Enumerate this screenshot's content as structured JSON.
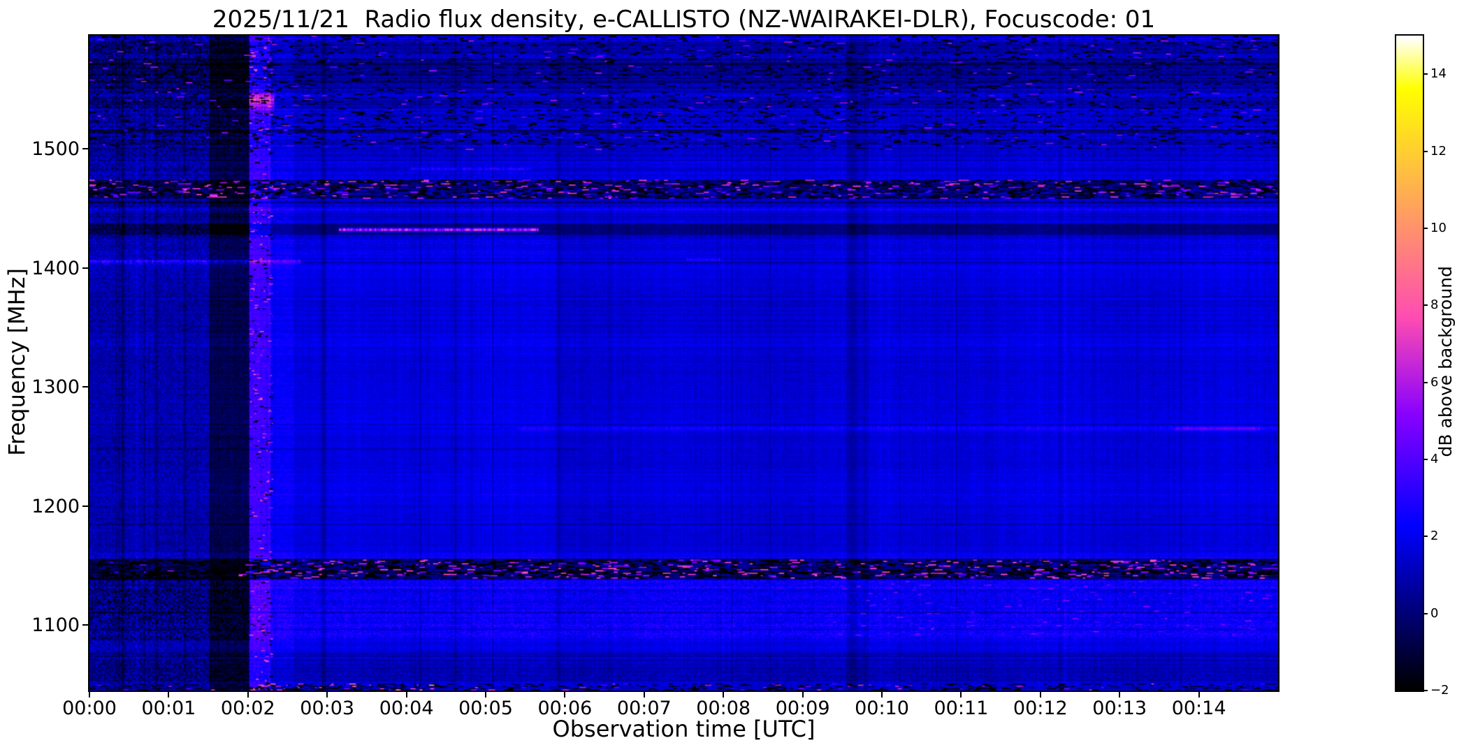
{
  "figure": {
    "title": "2025/11/21  Radio flux density, e-CALLISTO (NZ-WAIRAKEI-DLR), Focuscode: 01",
    "xlabel": "Observation time [UTC]",
    "ylabel": "Frequency [MHz]",
    "colorbar_label": "dB above background",
    "background": "#ffffff"
  },
  "chart_data": {
    "type": "heatmap",
    "title": "2025/11/21  Radio flux density, e-CALLISTO (NZ-WAIRAKEI-DLR), Focuscode: 01",
    "xlabel": "Observation time [UTC]",
    "ylabel": "Frequency [MHz]",
    "colorbar_label": "dB above background",
    "colormap": "gnuplot2",
    "x_range_minutes": [
      0,
      15
    ],
    "y_range_mhz": [
      1045,
      1595
    ],
    "value_range_db": [
      -2,
      15
    ],
    "x_ticks": [
      {
        "t": 0,
        "label": "00:00"
      },
      {
        "t": 1,
        "label": "00:01"
      },
      {
        "t": 2,
        "label": "00:02"
      },
      {
        "t": 3,
        "label": "00:03"
      },
      {
        "t": 4,
        "label": "00:04"
      },
      {
        "t": 5,
        "label": "00:05"
      },
      {
        "t": 6,
        "label": "00:06"
      },
      {
        "t": 7,
        "label": "00:07"
      },
      {
        "t": 8,
        "label": "00:08"
      },
      {
        "t": 9,
        "label": "00:09"
      },
      {
        "t": 10,
        "label": "00:10"
      },
      {
        "t": 11,
        "label": "00:11"
      },
      {
        "t": 12,
        "label": "00:12"
      },
      {
        "t": 13,
        "label": "00:13"
      },
      {
        "t": 14,
        "label": "00:14"
      }
    ],
    "y_ticks": [
      {
        "f": 1500,
        "label": "1500"
      },
      {
        "f": 1400,
        "label": "1400"
      },
      {
        "f": 1300,
        "label": "1300"
      },
      {
        "f": 1200,
        "label": "1200"
      },
      {
        "f": 1100,
        "label": "1100"
      }
    ],
    "colorbar_ticks": [
      {
        "v": 14,
        "label": "14"
      },
      {
        "v": 12,
        "label": "12"
      },
      {
        "v": 10,
        "label": "10"
      },
      {
        "v": 8,
        "label": "8"
      },
      {
        "v": 6,
        "label": "6"
      },
      {
        "v": 4,
        "label": "4"
      },
      {
        "v": 2,
        "label": "2"
      },
      {
        "v": 0,
        "label": "0"
      },
      {
        "v": -2,
        "label": "−2"
      }
    ],
    "description": "L-band solar radio spectrogram, mostly quiet blue background (~1-3 dB) with RFI: speckled interference bands near 1465 MHz and 1145 MHz, a bright magenta line at ~1432 MHz from 00:03 to 00:05.6, a bright blue line at ~1405 MHz before 00:02.5, a faint enhancement at ~1265 MHz after 00:06, a dark column near 00:01.5-00:02 followed by a bright full-height column at ~00:02.1 with a pink patch near 1540 MHz, a mottled bright region 1090-1140 MHz, and bright speckles along the bottom edge near 00:02-00:04.",
    "render": {
      "seed": 20251121,
      "grid": {
        "cols": 900,
        "rows": 550
      },
      "base_db": 1.7,
      "noise_db": 0.42,
      "row_noise": {
        "sigma": 0.33,
        "p_dark": 0.05,
        "dark_extra": [
          -1.6,
          -0.6
        ],
        "p_bright": 0.05,
        "bright_extra": [
          0.35,
          0.9
        ]
      },
      "col_noise": {
        "sigma": 0.15,
        "p_dark": 0.035,
        "dark_extra": [
          -0.9,
          -0.35
        ],
        "p_bright": 0.02,
        "bright_extra": [
          0.2,
          0.5
        ]
      },
      "calm": {
        "f": [
          1163,
          1402
        ],
        "factor": 0.4,
        "mottle": 0.85
      },
      "row_wave": {
        "amp": 0.16,
        "period": 63
      },
      "col_wave": {
        "amp": 0.1,
        "period": 2.3
      },
      "freq_zones": [
        {
          "f": [
            1555,
            1595
          ],
          "dv": -0.55,
          "stripe_p": 0.5,
          "stripe_dv": -0.9,
          "mottle": 1.4
        },
        {
          "f": [
            1500,
            1555
          ],
          "dv": -0.3,
          "stripe_p": 0.42,
          "stripe_dv": -0.75,
          "mottle": 1.3
        },
        {
          "f": [
            1474,
            1500
          ],
          "dv": -0.15,
          "mottle": 1.1
        },
        {
          "f": [
            1458,
            1474
          ],
          "dv": -1.35,
          "mottle": 1.2
        },
        {
          "f": [
            1428,
            1437
          ],
          "dv": -1.5,
          "mottle": 1.0
        },
        {
          "f": [
            1138,
            1156
          ],
          "dv": -1.55,
          "mottle": 1.0
        },
        {
          "f": [
            1088,
            1138
          ],
          "dv": 0.55,
          "mottle": 1.7
        },
        {
          "f": [
            1052,
            1072
          ],
          "dv": -0.65,
          "mottle": 1.3
        }
      ],
      "time_zones": [
        {
          "t": [
            0,
            1.52
          ],
          "dv": -0.85,
          "col_noise": 2.3
        },
        {
          "t": [
            1.52,
            2.02
          ],
          "dv": -2.2,
          "col_noise": 1.6
        },
        {
          "t": [
            2.02,
            2.28
          ],
          "dv": 1.9,
          "col_noise": 1.2
        },
        {
          "t": [
            2.28,
            2.58
          ],
          "dv": 0.55,
          "col_noise": 1.0
        },
        {
          "t": [
            9.55,
            9.82
          ],
          "dv": -0.5,
          "col_noise": 1.0
        }
      ],
      "rects": [
        {
          "t": [
            0,
            2.02
          ],
          "f": [
            1088,
            1140
          ],
          "dv": -1.3
        },
        {
          "t": [
            3.0,
            5.9
          ],
          "f": [
            1156,
            1428
          ],
          "dv": 0.12
        },
        {
          "t": [
            5.9,
            9.55
          ],
          "f": [
            1156,
            1428
          ],
          "dv": -0.12
        }
      ],
      "h_lines": [
        {
          "f": 1592,
          "hw": 1.5,
          "t": [
            0,
            15
          ],
          "dv": 0.9,
          "flicker": 0.4
        },
        {
          "f": 1540,
          "hw": 7,
          "t": [
            2.02,
            2.32
          ],
          "dv": 4.2,
          "flicker": 0.2
        },
        {
          "f": 1505,
          "hw": 0.8,
          "t": [
            0,
            15
          ],
          "dv": -0.6,
          "flicker": 0
        },
        {
          "f": 1483,
          "hw": 1.1,
          "t": [
            4.05,
            5.6
          ],
          "dv": 1.7,
          "flicker": 0.6
        },
        {
          "f": 1456,
          "hw": 0.9,
          "t": [
            0,
            15
          ],
          "dv": -1.0,
          "flicker": 0
        },
        {
          "f": 1432,
          "hw": 1.5,
          "t": [
            3.15,
            5.65
          ],
          "dv": 6.6,
          "flicker": 0.3
        },
        {
          "f": 1405,
          "hw": 1.8,
          "t": [
            0,
            2.65
          ],
          "dv": 2.6,
          "flicker": 0.35
        },
        {
          "f": 1407,
          "hw": 1.0,
          "t": [
            7.55,
            7.95
          ],
          "dv": 1.6,
          "flicker": 0.3
        },
        {
          "f": 1347,
          "hw": 0.8,
          "t": [
            0,
            15
          ],
          "dv": -0.55,
          "flicker": 0
        },
        {
          "f": 1265,
          "hw": 1.3,
          "t": [
            5.4,
            15
          ],
          "dv": 1.1,
          "flicker": 0.35
        },
        {
          "f": 1265,
          "hw": 1.5,
          "t": [
            13.7,
            14.75
          ],
          "dv": 1.5,
          "flicker": 0.2
        },
        {
          "f": 1248,
          "hw": 0.8,
          "t": [
            0,
            6.2
          ],
          "dv": -0.8,
          "flicker": 0
        },
        {
          "f": 1162,
          "hw": 0.8,
          "t": [
            0,
            15
          ],
          "dv": -0.7,
          "flicker": 0
        },
        {
          "f": 1076,
          "hw": 0.9,
          "t": [
            0,
            15
          ],
          "dv": -0.8,
          "flicker": 0
        }
      ],
      "v_lines": [
        {
          "t": 0.42,
          "w": 0.025,
          "dv": -1.1
        },
        {
          "t": 0.84,
          "w": 0.02,
          "dv": -0.9
        },
        {
          "t": 1.2,
          "w": 0.02,
          "dv": -0.9
        },
        {
          "t": 2.95,
          "w": 0.03,
          "dv": -1.0
        },
        {
          "t": 5.92,
          "w": 0.025,
          "dv": -0.7
        },
        {
          "t": 6.55,
          "w": 0.02,
          "dv": -0.4
        },
        {
          "t": 9.62,
          "w": 0.05,
          "dv": -0.5
        },
        {
          "t": 12.25,
          "w": 0.02,
          "dv": -0.45
        }
      ],
      "speckle_bands": [
        {
          "f": [
            1500,
            1595
          ],
          "t": [
            0,
            15
          ],
          "p_bright": 0.012,
          "bright": [
            3,
            6
          ],
          "p_dark": 0.1,
          "dark": [
            -2.3,
            -1.0
          ],
          "run": [
            2,
            6
          ]
        },
        {
          "f": [
            1459,
            1474
          ],
          "t": [
            0,
            15
          ],
          "p_bright": 0.1,
          "bright": [
            3.5,
            7.5
          ],
          "p_dark": 0.4,
          "dark": [
            -2.6,
            -0.8
          ],
          "run": [
            2,
            6
          ]
        },
        {
          "f": [
            1045,
            1051
          ],
          "t": [
            0,
            15
          ],
          "p_bright": 0.02,
          "bright": [
            3,
            7
          ],
          "p_dark": 0.25,
          "dark": [
            -2.2,
            -0.8
          ],
          "run": [
            2,
            5
          ]
        },
        {
          "f": [
            1045,
            1051
          ],
          "t": [
            1.95,
            4.4
          ],
          "p_bright": 0.1,
          "bright": [
            5,
            10
          ],
          "p_dark": 0.22,
          "dark": [
            -2,
            -0.5
          ],
          "run": [
            1,
            4
          ]
        },
        {
          "f": [
            1140,
            1154
          ],
          "t": [
            0,
            1.9
          ],
          "p_bright": 0.015,
          "bright": [
            3,
            6
          ],
          "p_dark": 0.5,
          "dark": [
            -2.8,
            -1.2
          ],
          "run": [
            2,
            6
          ]
        },
        {
          "f": [
            1140,
            1154
          ],
          "t": [
            1.9,
            15
          ],
          "p_bright": 0.12,
          "bright": [
            4,
            8
          ],
          "p_dark": 0.42,
          "dark": [
            -2.8,
            -1.0
          ],
          "run": [
            2,
            6
          ]
        },
        {
          "f": [
            1092,
            1137
          ],
          "t": [
            9.3,
            14.9
          ],
          "p_bright": 0.025,
          "bright": [
            3,
            5.5
          ],
          "p_dark": 0,
          "dark": [
            0,
            0
          ],
          "run": [
            2,
            5
          ]
        },
        {
          "f": [
            1045,
            1595
          ],
          "t": [
            2.03,
            2.3
          ],
          "p_bright": 0.05,
          "bright": [
            4,
            8
          ],
          "p_dark": 0.04,
          "dark": [
            -1.6,
            -0.5
          ],
          "run": [
            1,
            3
          ]
        }
      ]
    }
  }
}
